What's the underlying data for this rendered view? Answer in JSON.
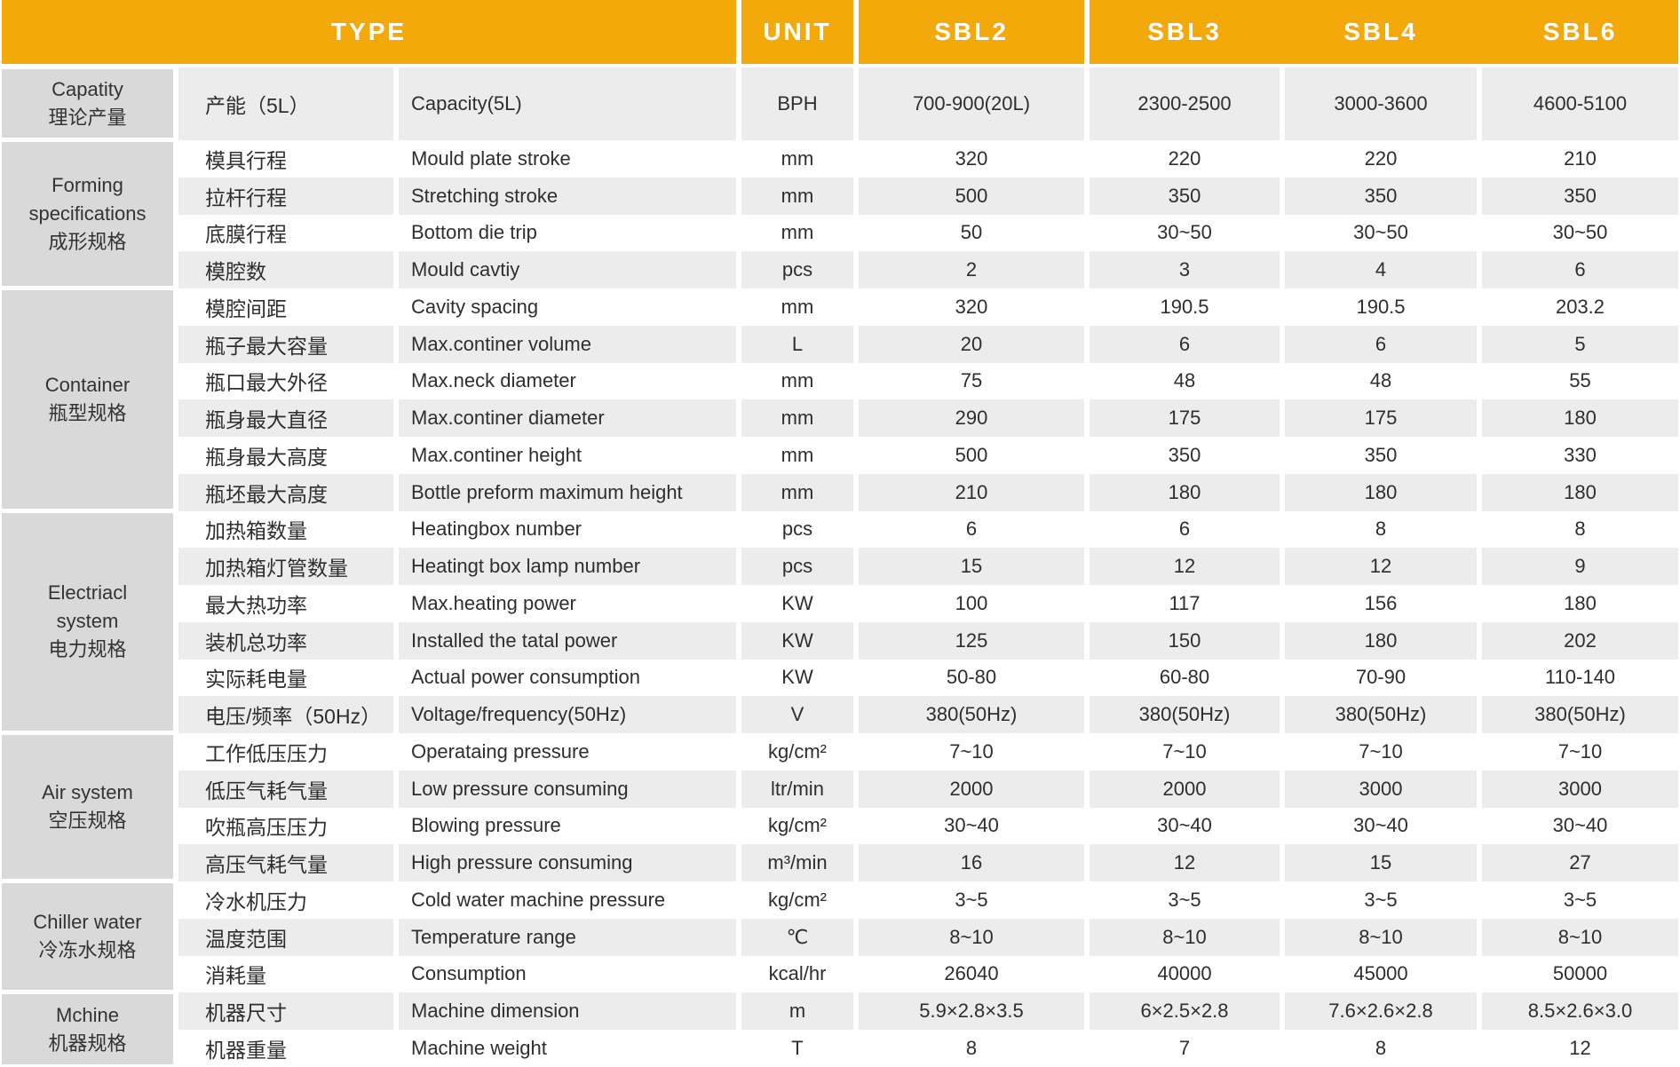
{
  "header": {
    "type_label": "TYPE",
    "unit_label": "UNIT",
    "models": [
      "SBL2",
      "SBL3",
      "SBL4",
      "SBL6"
    ]
  },
  "colors": {
    "header_orange": "#F3A90A",
    "header_text": "#FFFFFF",
    "group_gray": "#D9D9D9",
    "stripe_gray": "#ECECEC",
    "stripe_white": "#FFFFFF",
    "body_text": "#2E2E2E"
  },
  "groups": [
    {
      "label_en": "Capatity",
      "label_zh": "理论产量",
      "rows": [
        {
          "zh": "产能（5L）",
          "en": "Capacity(5L)",
          "unit": "BPH",
          "values": [
            "700-900(20L)",
            "2300-2500",
            "3000-3600",
            "4600-5100"
          ]
        }
      ]
    },
    {
      "label_en": "Forming specifications",
      "label_zh": "成形规格",
      "label_lines": [
        "Forming",
        "specifications",
        "成形规格"
      ],
      "rows": [
        {
          "zh": "模具行程",
          "en": "Mould plate stroke",
          "unit": "mm",
          "values": [
            "320",
            "220",
            "220",
            "210"
          ]
        },
        {
          "zh": "拉杆行程",
          "en": "Stretching stroke",
          "unit": "mm",
          "values": [
            "500",
            "350",
            "350",
            "350"
          ]
        },
        {
          "zh": "底膜行程",
          "en": "Bottom die trip",
          "unit": "mm",
          "values": [
            "50",
            "30~50",
            "30~50",
            "30~50"
          ]
        },
        {
          "zh": "模腔数",
          "en": "Mould cavtiy",
          "unit": "pcs",
          "values": [
            "2",
            "3",
            "4",
            "6"
          ]
        }
      ]
    },
    {
      "label_en": "Container",
      "label_zh": "瓶型规格",
      "rows": [
        {
          "zh": "模腔间距",
          "en": "Cavity spacing",
          "unit": "mm",
          "values": [
            "320",
            "190.5",
            "190.5",
            "203.2"
          ]
        },
        {
          "zh": "瓶子最大容量",
          "en": "Max.continer volume",
          "unit": "L",
          "values": [
            "20",
            "6",
            "6",
            "5"
          ]
        },
        {
          "zh": "瓶口最大外径",
          "en": "Max.neck diameter",
          "unit": "mm",
          "values": [
            "75",
            "48",
            "48",
            "55"
          ]
        },
        {
          "zh": "瓶身最大直径",
          "en": "Max.continer diameter",
          "unit": "mm",
          "values": [
            "290",
            "175",
            "175",
            "180"
          ]
        },
        {
          "zh": "瓶身最大高度",
          "en": "Max.continer height",
          "unit": "mm",
          "values": [
            "500",
            "350",
            "350",
            "330"
          ]
        },
        {
          "zh": "瓶坯最大高度",
          "en": "Bottle preform maximum height",
          "unit": "mm",
          "values": [
            "210",
            "180",
            "180",
            "180"
          ]
        }
      ]
    },
    {
      "label_en": "Electriacl system",
      "label_zh": "电力规格",
      "label_lines": [
        "Electriacl",
        "system",
        "电力规格"
      ],
      "rows": [
        {
          "zh": "加热箱数量",
          "en": "Heatingbox number",
          "unit": "pcs",
          "values": [
            "6",
            "6",
            "8",
            "8"
          ]
        },
        {
          "zh": "加热箱灯管数量",
          "en": "Heatingt box lamp number",
          "unit": "pcs",
          "values": [
            "15",
            "12",
            "12",
            "9"
          ]
        },
        {
          "zh": "最大热功率",
          "en": "Max.heating power",
          "unit": "KW",
          "values": [
            "100",
            "117",
            "156",
            "180"
          ]
        },
        {
          "zh": "装机总功率",
          "en": "Installed the tatal power",
          "unit": "KW",
          "values": [
            "125",
            "150",
            "180",
            "202"
          ]
        },
        {
          "zh": "实际耗电量",
          "en": "Actual power consumption",
          "unit": "KW",
          "values": [
            "50-80",
            "60-80",
            "70-90",
            "110-140"
          ]
        },
        {
          "zh": "电压/频率（50Hz）",
          "en": "Voltage/frequency(50Hz)",
          "unit": "V",
          "values": [
            "380(50Hz)",
            "380(50Hz)",
            "380(50Hz)",
            "380(50Hz)"
          ]
        }
      ]
    },
    {
      "label_en": "Air system",
      "label_zh": "空压规格",
      "rows": [
        {
          "zh": "工作低压压力",
          "en": "Operataing pressure",
          "unit": "kg/cm²",
          "values": [
            "7~10",
            "7~10",
            "7~10",
            "7~10"
          ]
        },
        {
          "zh": "低压气耗气量",
          "en": "Low pressure consuming",
          "unit": "ltr/min",
          "values": [
            "2000",
            "2000",
            "3000",
            "3000"
          ]
        },
        {
          "zh": "吹瓶高压压力",
          "en": "Blowing pressure",
          "unit": "kg/cm²",
          "values": [
            "30~40",
            "30~40",
            "30~40",
            "30~40"
          ]
        },
        {
          "zh": "高压气耗气量",
          "en": "High pressure consuming",
          "unit": "m³/min",
          "values": [
            "16",
            "12",
            "15",
            "27"
          ]
        }
      ]
    },
    {
      "label_en": "Chiller water",
      "label_zh": "冷冻水规格",
      "rows": [
        {
          "zh": "冷水机压力",
          "en": "Cold water machine pressure",
          "unit": "kg/cm²",
          "values": [
            "3~5",
            "3~5",
            "3~5",
            "3~5"
          ]
        },
        {
          "zh": "温度范围",
          "en": "Temperature range",
          "unit": "℃",
          "values": [
            "8~10",
            "8~10",
            "8~10",
            "8~10"
          ]
        },
        {
          "zh": "消耗量",
          "en": "Consumption",
          "unit": "kcal/hr",
          "values": [
            "26040",
            "40000",
            "45000",
            "50000"
          ]
        }
      ]
    },
    {
      "label_en": "Mchine",
      "label_zh": "机器规格",
      "rows": [
        {
          "zh": "机器尺寸",
          "en": "Machine dimension",
          "unit": "m",
          "values": [
            "5.9×2.8×3.5",
            "6×2.5×2.8",
            "7.6×2.6×2.8",
            "8.5×2.6×3.0"
          ]
        },
        {
          "zh": "机器重量",
          "en": "Machine weight",
          "unit": "T",
          "values": [
            "8",
            "7",
            "8",
            "12"
          ]
        }
      ]
    }
  ]
}
